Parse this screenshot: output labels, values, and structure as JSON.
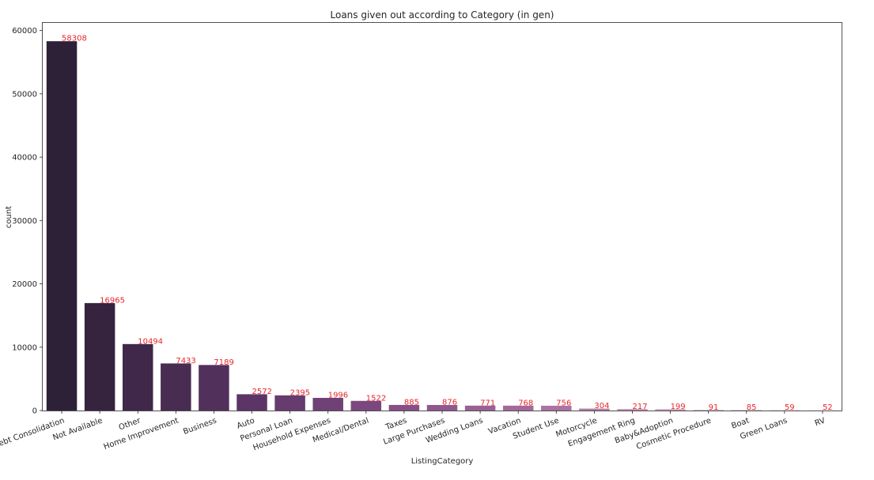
{
  "chart_data": {
    "type": "bar",
    "title": "Loans given out according to Category (in gen)",
    "xlabel": "ListingCategory",
    "ylabel": "count",
    "ylim": [
      0,
      61200
    ],
    "yticks": [
      0,
      10000,
      20000,
      30000,
      40000,
      50000,
      60000
    ],
    "grid": false,
    "label_color": "#e8262b",
    "categories": [
      "Debt Consolidation",
      "Not Available",
      "Other",
      "Home Improvement",
      "Business",
      "Auto",
      "Personal Loan",
      "Household Expenses",
      "Medical/Dental",
      "Taxes",
      "Large Purchases",
      "Wedding Loans",
      "Vacation",
      "Student Use",
      "Motorcycle",
      "Engagement Ring",
      "Baby&Adoption",
      "Cosmetic Procedure",
      "Boat",
      "Green Loans",
      "RV"
    ],
    "values": [
      58308,
      16965,
      10494,
      7433,
      7189,
      2572,
      2395,
      1996,
      1522,
      885,
      876,
      771,
      768,
      756,
      304,
      217,
      199,
      91,
      85,
      59,
      52
    ],
    "colors": [
      "#2d2138",
      "#36243f",
      "#3f2849",
      "#482c52",
      "#52305c",
      "#5c3566",
      "#663b6e",
      "#704176",
      "#7b487e",
      "#864f86",
      "#90578d",
      "#9a6094",
      "#a4699a",
      "#ad72a1",
      "#b57ca7",
      "#bd87ad",
      "#c592b4",
      "#cc9dba",
      "#d3a9c0",
      "#d9b5c7",
      "#dfc1cd"
    ]
  }
}
